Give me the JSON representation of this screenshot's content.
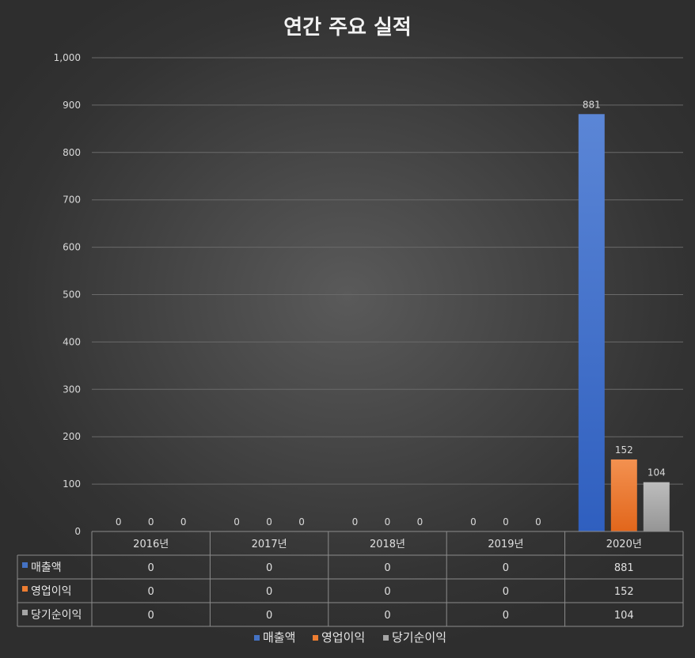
{
  "chart_data": {
    "type": "bar",
    "title": "연간 주요 실적",
    "categories": [
      "2016년",
      "2017년",
      "2018년",
      "2019년",
      "2020년"
    ],
    "series": [
      {
        "name": "매출액",
        "color": "#4472c4",
        "values": [
          0,
          0,
          0,
          0,
          881
        ]
      },
      {
        "name": "영업이익",
        "color": "#ed7d31",
        "values": [
          0,
          0,
          0,
          0,
          152
        ]
      },
      {
        "name": "당기순이익",
        "color": "#a5a5a5",
        "values": [
          0,
          0,
          0,
          0,
          104
        ]
      }
    ],
    "ylim": [
      0,
      1000
    ],
    "yticks": [
      "0",
      "100",
      "200",
      "300",
      "400",
      "500",
      "600",
      "700",
      "800",
      "900",
      "1,000"
    ],
    "grid": true,
    "data_table": true,
    "legend": "bottom"
  }
}
